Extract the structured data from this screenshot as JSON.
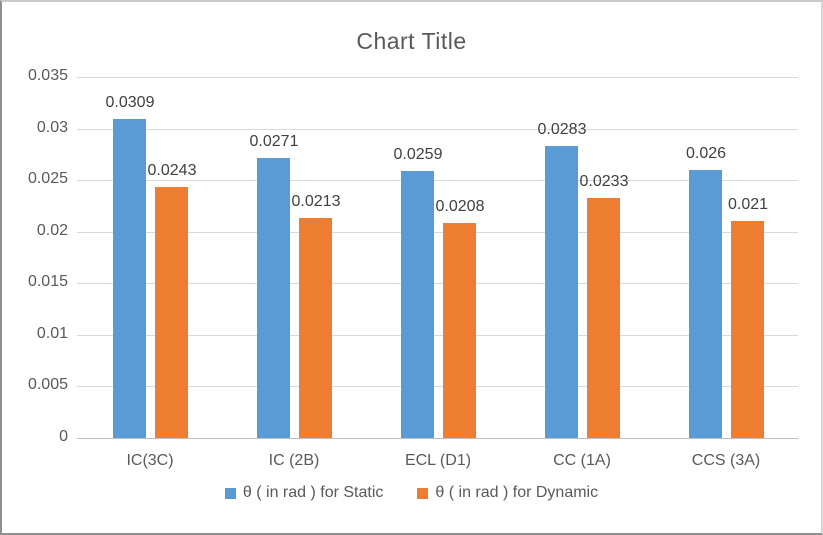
{
  "chart_data": {
    "type": "bar",
    "title": "Chart Title",
    "categories": [
      "IC(3C)",
      "IC (2B)",
      "ECL (D1)",
      "CC (1A)",
      "CCS (3A)"
    ],
    "series": [
      {
        "name": "θ ( in rad ) for Static",
        "color": "#5B9BD5",
        "values": [
          0.0309,
          0.0271,
          0.0259,
          0.0283,
          0.026
        ],
        "labels": [
          "0.0309",
          "0.0271",
          "0.0259",
          "0.0283",
          "0.026"
        ]
      },
      {
        "name": "θ ( in rad ) for Dynamic",
        "color": "#ED7D31",
        "values": [
          0.0243,
          0.0213,
          0.0208,
          0.0233,
          0.021
        ],
        "labels": [
          "0.0243",
          "0.0213",
          "0.0208",
          "0.0233",
          "0.021"
        ]
      }
    ],
    "ylim": [
      0,
      0.035
    ],
    "ytick_step": 0.005,
    "ytick_labels": [
      "0",
      "0.005",
      "0.01",
      "0.015",
      "0.02",
      "0.025",
      "0.03",
      "0.035"
    ],
    "grid": true,
    "legend_position": "bottom",
    "colors": {
      "gridline": "#d9d9d9",
      "axis_line": "#bfbfbf",
      "tick_text": "#595959",
      "data_label_text": "#404040",
      "title_text": "#595959"
    }
  }
}
